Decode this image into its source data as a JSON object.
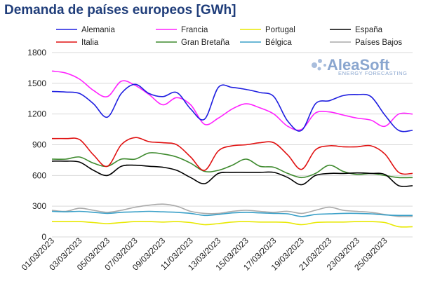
{
  "chart_data": {
    "type": "line",
    "title": "Demanda de países europeos [GWh]",
    "xlabel": "",
    "ylabel": "",
    "ylim": [
      0,
      1800
    ],
    "yticks": [
      0,
      300,
      600,
      900,
      1200,
      1500,
      1800
    ],
    "grid": "horizontal",
    "legend_position": "top",
    "x": [
      "01/03/2023",
      "02/03/2023",
      "03/03/2023",
      "04/03/2023",
      "05/03/2023",
      "06/03/2023",
      "07/03/2023",
      "08/03/2023",
      "09/03/2023",
      "10/03/2023",
      "11/03/2023",
      "12/03/2023",
      "13/03/2023",
      "14/03/2023",
      "15/03/2023",
      "16/03/2023",
      "17/03/2023",
      "18/03/2023",
      "19/03/2023",
      "20/03/2023",
      "21/03/2023",
      "22/03/2023",
      "23/03/2023",
      "24/03/2023",
      "25/03/2023",
      "26/03/2023",
      "27/03/2023"
    ],
    "xtick_labels": [
      "01/03/2023",
      "03/03/2023",
      "05/03/2023",
      "07/03/2023",
      "09/03/2023",
      "11/03/2023",
      "13/03/2023",
      "15/03/2023",
      "17/03/2023",
      "19/03/2023",
      "21/03/2023",
      "23/03/2023",
      "25/03/2023"
    ],
    "series": [
      {
        "name": "Alemania",
        "color": "#1f1fe0",
        "values": [
          1420,
          1415,
          1400,
          1300,
          1170,
          1400,
          1490,
          1400,
          1370,
          1410,
          1250,
          1150,
          1460,
          1460,
          1440,
          1410,
          1370,
          1130,
          1040,
          1300,
          1330,
          1380,
          1390,
          1370,
          1190,
          1040,
          1040
        ]
      },
      {
        "name": "Francia",
        "color": "#ff22ff",
        "values": [
          1620,
          1600,
          1540,
          1430,
          1370,
          1520,
          1480,
          1390,
          1290,
          1360,
          1290,
          1100,
          1160,
          1250,
          1300,
          1260,
          1200,
          1080,
          1050,
          1210,
          1220,
          1190,
          1160,
          1140,
          1080,
          1200,
          1200
        ]
      },
      {
        "name": "Portugal",
        "color": "#e8e800",
        "values": [
          150,
          150,
          150,
          140,
          130,
          140,
          150,
          150,
          145,
          150,
          140,
          120,
          130,
          145,
          150,
          145,
          145,
          140,
          120,
          140,
          145,
          145,
          150,
          150,
          140,
          100,
          100
        ]
      },
      {
        "name": "España",
        "color": "#000000",
        "values": [
          740,
          740,
          730,
          650,
          600,
          690,
          700,
          690,
          680,
          650,
          580,
          520,
          620,
          630,
          630,
          630,
          630,
          580,
          510,
          600,
          620,
          620,
          625,
          620,
          610,
          500,
          500
        ]
      },
      {
        "name": "Italia",
        "color": "#e01010",
        "values": [
          960,
          960,
          950,
          800,
          690,
          900,
          970,
          930,
          920,
          900,
          780,
          650,
          840,
          890,
          900,
          920,
          920,
          800,
          660,
          850,
          890,
          880,
          880,
          890,
          810,
          630,
          620
        ]
      },
      {
        "name": "Gran Bretaña",
        "color": "#3e8a2e",
        "values": [
          760,
          760,
          780,
          720,
          690,
          760,
          760,
          820,
          810,
          780,
          720,
          640,
          650,
          700,
          760,
          690,
          680,
          620,
          580,
          620,
          700,
          640,
          610,
          620,
          600,
          580,
          580
        ]
      },
      {
        "name": "Bélgica",
        "color": "#3aa0c8",
        "values": [
          250,
          245,
          250,
          240,
          230,
          240,
          245,
          250,
          245,
          240,
          230,
          210,
          220,
          235,
          240,
          235,
          230,
          225,
          200,
          220,
          225,
          230,
          230,
          225,
          215,
          210,
          210
        ]
      },
      {
        "name": "Países Bajos",
        "color": "#aaaaaa",
        "values": [
          260,
          250,
          280,
          260,
          240,
          260,
          290,
          310,
          320,
          300,
          250,
          230,
          230,
          250,
          260,
          250,
          240,
          250,
          230,
          260,
          290,
          260,
          250,
          240,
          220,
          200,
          200
        ]
      }
    ]
  },
  "logo": {
    "main": "AleaSoft",
    "sub": "ENERGY FORECASTING"
  }
}
